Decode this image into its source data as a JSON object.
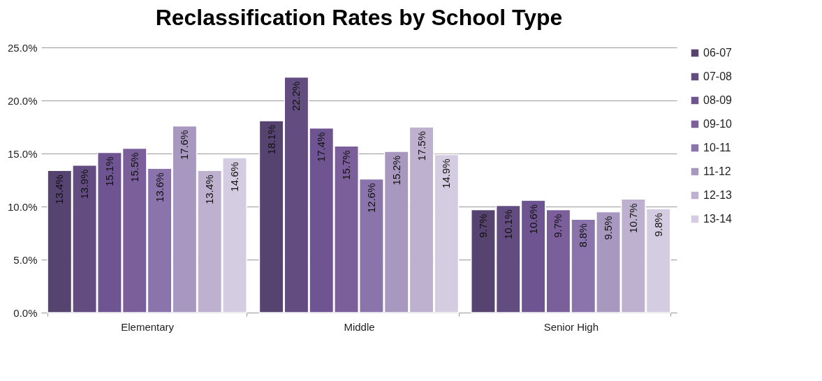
{
  "chart_data": {
    "type": "bar",
    "title": "Reclassification Rates by School Type",
    "categories": [
      "Elementary",
      "Middle",
      "Senior High"
    ],
    "series": [
      {
        "name": "06-07",
        "color": "#56436f",
        "values": [
          13.4,
          18.1,
          9.7
        ],
        "value_labels": [
          "13.4%",
          "18.1%",
          "9.7%"
        ]
      },
      {
        "name": "07-08",
        "color": "#634d80",
        "values": [
          13.9,
          22.2,
          10.1
        ],
        "value_labels": [
          "13.9%",
          "22.2%",
          "10.1%"
        ]
      },
      {
        "name": "08-09",
        "color": "#6e5592",
        "values": [
          15.1,
          17.4,
          10.6
        ],
        "value_labels": [
          "15.1%",
          "17.4%",
          "10.6%"
        ]
      },
      {
        "name": "09-10",
        "color": "#7b5f9a",
        "values": [
          15.5,
          15.7,
          9.7
        ],
        "value_labels": [
          "15.5%",
          "15.7%",
          "9.7%"
        ]
      },
      {
        "name": "10-11",
        "color": "#8a74ab",
        "values": [
          13.6,
          12.6,
          8.8
        ],
        "value_labels": [
          "13.6%",
          "12.6%",
          "8.8%"
        ]
      },
      {
        "name": "11-12",
        "color": "#a898c0",
        "values": [
          17.6,
          15.2,
          9.5
        ],
        "value_labels": [
          "17.6%",
          "15.2%",
          "9.5%"
        ]
      },
      {
        "name": "12-13",
        "color": "#bdb1cf",
        "values": [
          13.4,
          17.5,
          10.7
        ],
        "value_labels": [
          "13.4%",
          "17.5%",
          "10.7%"
        ]
      },
      {
        "name": "13-14",
        "color": "#d4cce0",
        "values": [
          14.6,
          14.9,
          9.8
        ],
        "value_labels": [
          "14.6%",
          "14.9%",
          "9.8%"
        ]
      }
    ],
    "ylim": [
      0,
      25
    ],
    "yticks": [
      {
        "value": 0,
        "label": "0.0%"
      },
      {
        "value": 5,
        "label": "5.0%"
      },
      {
        "value": 10,
        "label": "10.0%"
      },
      {
        "value": 15,
        "label": "15.0%"
      },
      {
        "value": 20,
        "label": "20.0%"
      },
      {
        "value": 25,
        "label": "25.0%"
      }
    ],
    "grid": "y",
    "legend": "right"
  }
}
